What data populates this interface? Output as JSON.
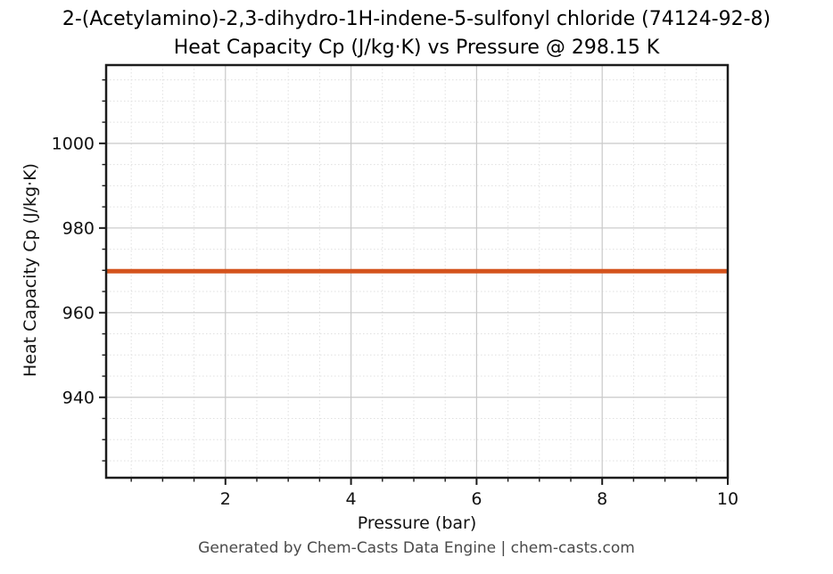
{
  "title": {
    "line1": "2-(Acetylamino)-2,3-dihydro-1H-indene-5-sulfonyl chloride (74124-92-8)",
    "line2": "Heat Capacity Cp (J/kg·K) vs Pressure @ 298.15 K"
  },
  "footer": "Generated by Chem-Casts Data Engine | chem-casts.com",
  "colors": {
    "line": "#d4531d",
    "spine": "#1c1c1c",
    "tick": "#1c1c1c",
    "grid_major": "#c9c9c9",
    "grid_minor": "#e0e0e0",
    "tick_label": "#111111",
    "title_text": "#000000",
    "footer_text": "#4a4a4a",
    "background": "#ffffff"
  },
  "chart_data": {
    "type": "line",
    "title": "2-(Acetylamino)-2,3-dihydro-1H-indene-5-sulfonyl chloride (74124-92-8)",
    "subtitle": "Heat Capacity Cp (J/kg·K) vs Pressure @ 298.15 K",
    "xlabel": "Pressure (bar)",
    "ylabel": "Heat Capacity Cp (J/kg·K)",
    "xlim": [
      0.1,
      10
    ],
    "ylim": [
      921.0,
      1018.5
    ],
    "x_major_ticks": [
      2,
      4,
      6,
      8,
      10
    ],
    "x_minor_tick_step": 0.5,
    "y_major_ticks": [
      940,
      960,
      980,
      1000
    ],
    "y_minor_tick_step": 5,
    "grid": true,
    "legend_position": "none",
    "series": [
      {
        "name": "Heat Capacity Cp",
        "color": "#d4531d",
        "line_width": 5,
        "x": [
          0.1,
          1,
          2,
          3,
          4,
          5,
          6,
          7,
          8,
          9,
          10
        ],
        "y": [
          969.8,
          969.8,
          969.8,
          969.8,
          969.8,
          969.8,
          969.8,
          969.8,
          969.8,
          969.8,
          969.8
        ],
        "note": "constant value ~969.8 J/kg·K across 0.1–10 bar at 298.15 K"
      }
    ]
  }
}
